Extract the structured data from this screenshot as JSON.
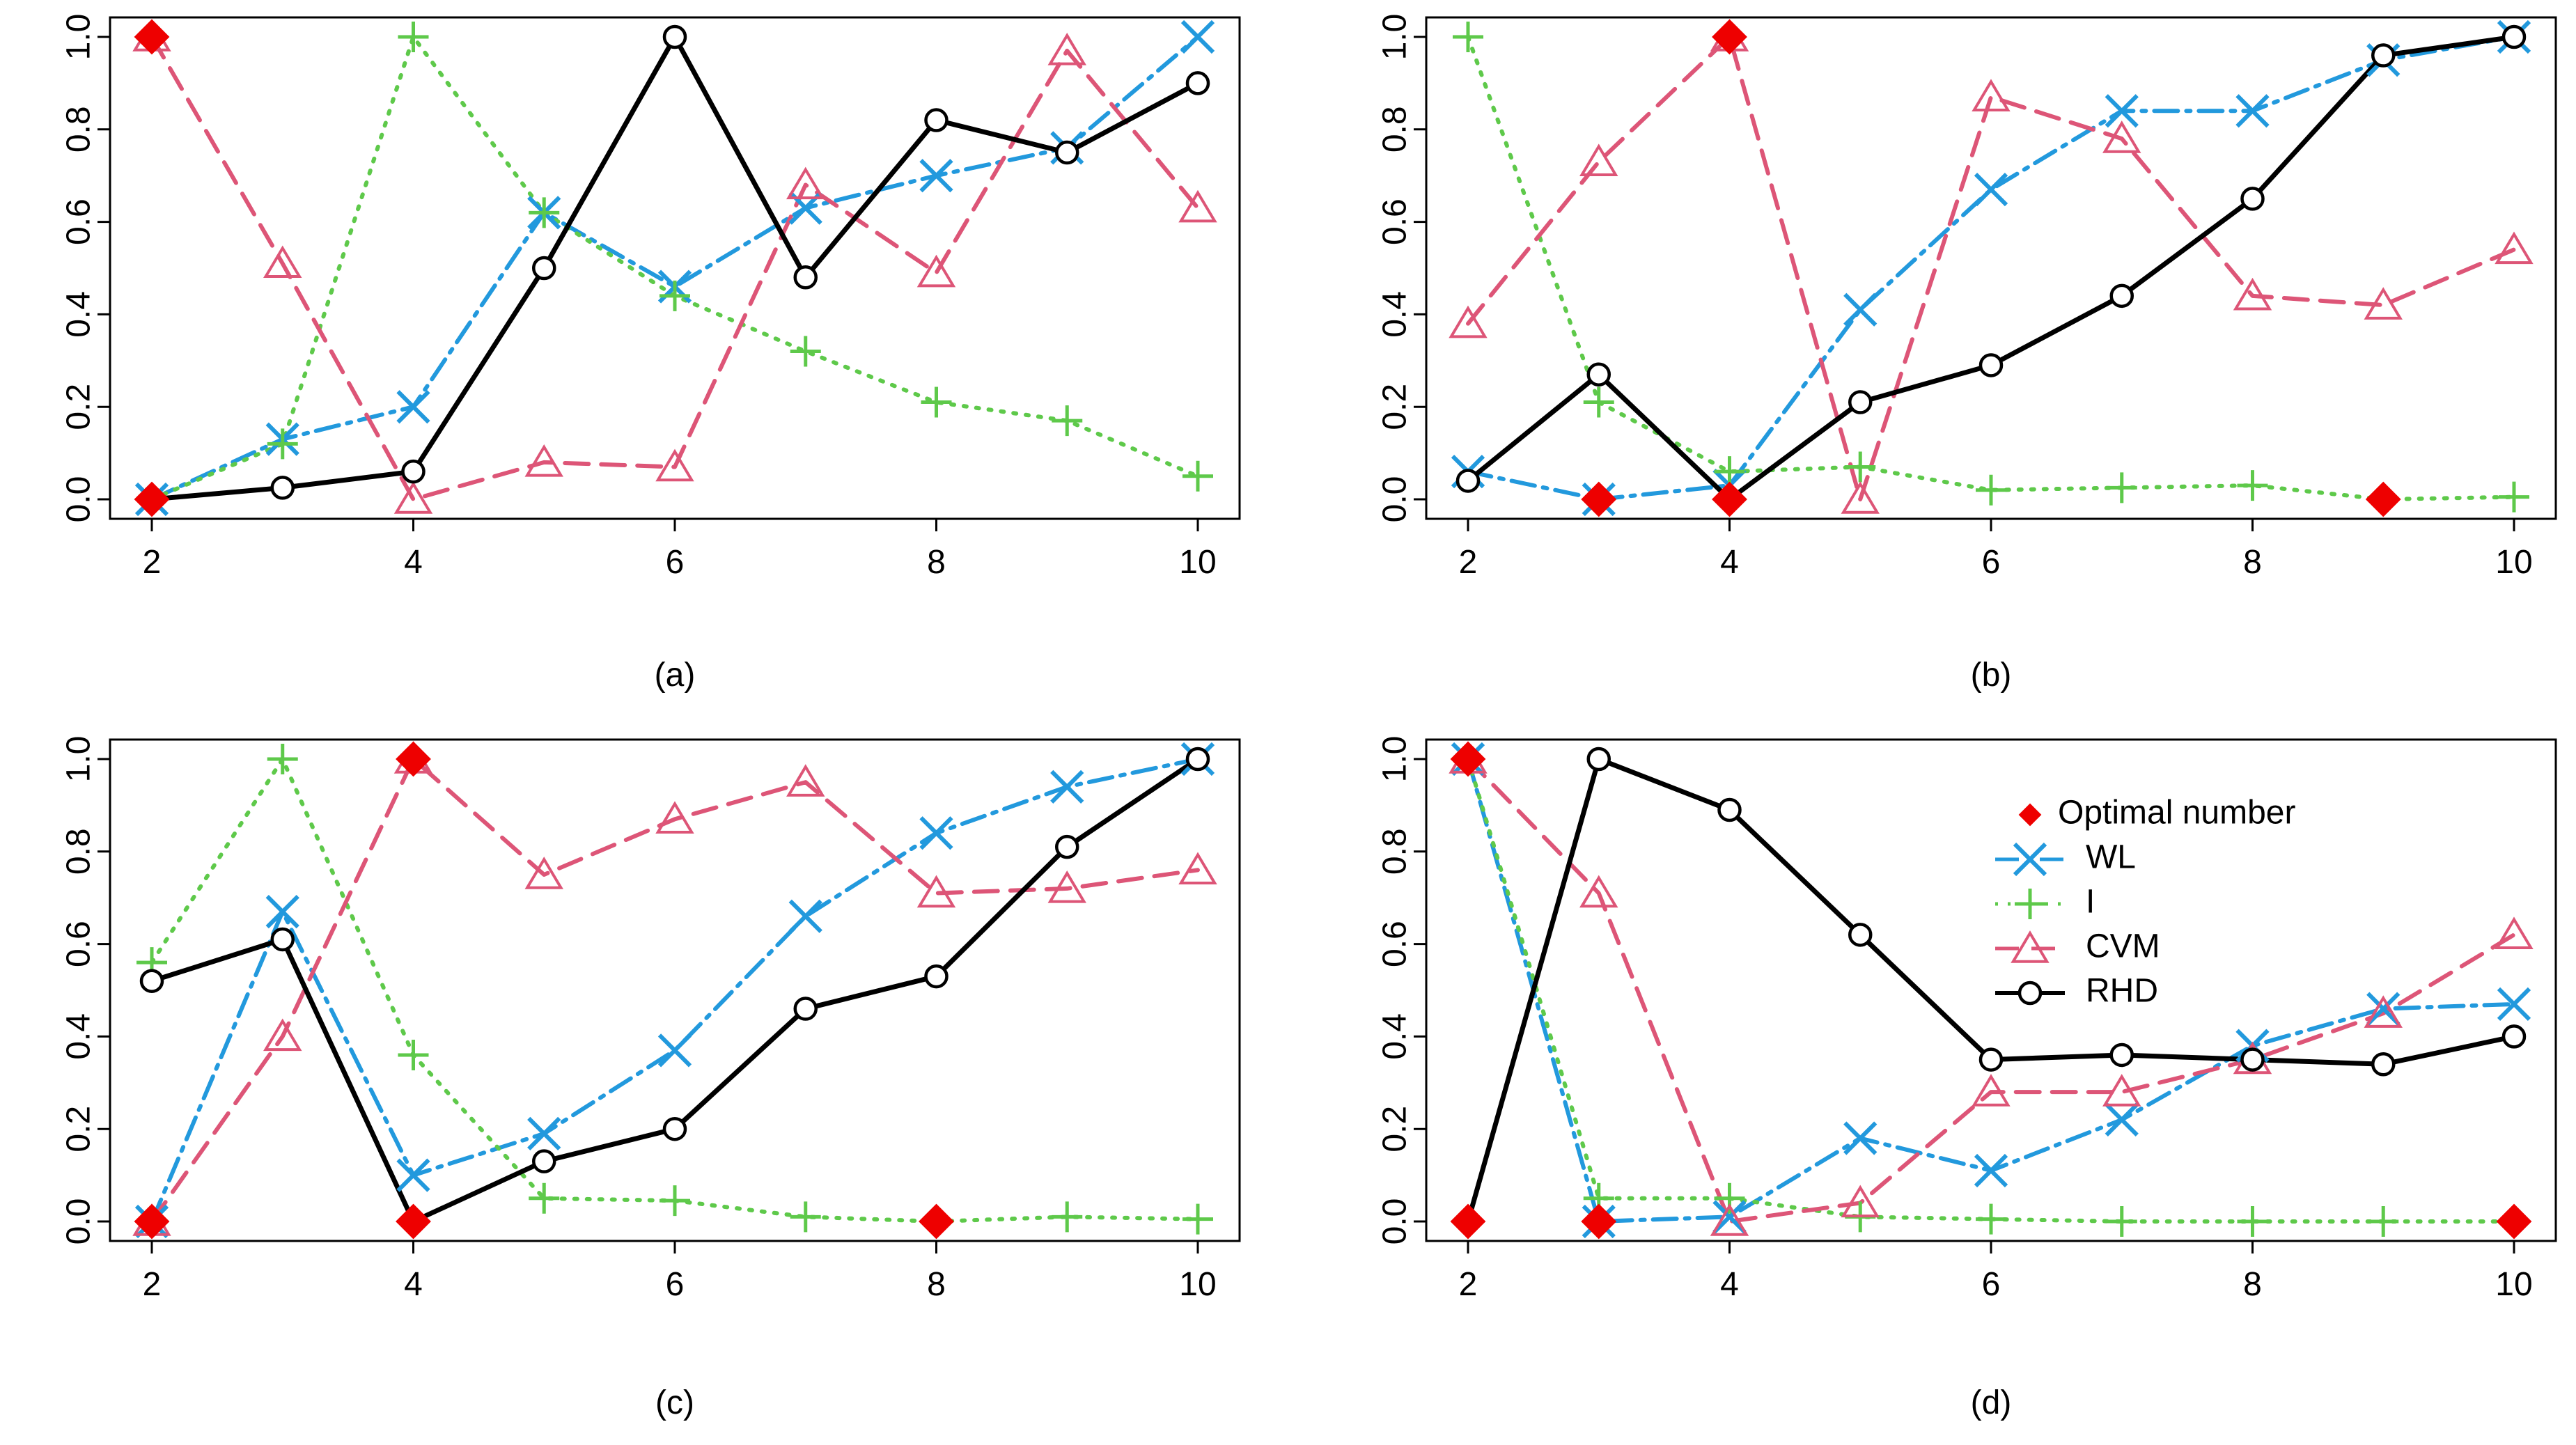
{
  "figure_title": "",
  "colors": {
    "WL": "#2299dd",
    "I": "#5ec94a",
    "CVM": "#dd5577",
    "RHD": "#000000",
    "Optimal": "#ee0000"
  },
  "legend": {
    "entries": [
      {
        "key": "Optimal",
        "label": "Optimal number",
        "marker": "diamond-icon"
      },
      {
        "key": "WL",
        "label": "WL",
        "marker": "cross-x-icon"
      },
      {
        "key": "I",
        "label": "I",
        "marker": "plus-icon"
      },
      {
        "key": "CVM",
        "label": "CVM",
        "marker": "triangle-icon"
      },
      {
        "key": "RHD",
        "label": "RHD",
        "marker": "circle-icon"
      }
    ]
  },
  "chart_data": [
    {
      "type": "line",
      "caption": "(a)",
      "x": [
        2,
        3,
        4,
        5,
        6,
        7,
        8,
        9,
        10
      ],
      "xticks": [
        2,
        4,
        6,
        8,
        10
      ],
      "yticks": [
        0.0,
        0.2,
        0.4,
        0.6,
        0.8,
        1.0
      ],
      "ytick_labels": [
        "0.0",
        "0.2",
        "0.4",
        "0.6",
        "0.8",
        "1.0"
      ],
      "xlim": [
        2,
        10
      ],
      "ylim": [
        0,
        1
      ],
      "series": [
        {
          "name": "WL",
          "values": [
            0.0,
            0.13,
            0.2,
            0.62,
            0.46,
            0.63,
            0.7,
            0.76,
            1.0
          ]
        },
        {
          "name": "I",
          "values": [
            0.0,
            0.12,
            1.0,
            0.62,
            0.44,
            0.32,
            0.21,
            0.17,
            0.05
          ]
        },
        {
          "name": "CVM",
          "values": [
            1.0,
            0.51,
            0.0,
            0.08,
            0.07,
            0.68,
            0.49,
            0.97,
            0.63
          ]
        },
        {
          "name": "RHD",
          "values": [
            0.0,
            0.025,
            0.06,
            0.5,
            1.0,
            0.48,
            0.82,
            0.75,
            0.9
          ]
        }
      ],
      "optimal_points": [
        {
          "x": 2,
          "y": 1.0
        },
        {
          "x": 2,
          "y": 0.0
        }
      ]
    },
    {
      "type": "line",
      "caption": "(b)",
      "x": [
        2,
        3,
        4,
        5,
        6,
        7,
        8,
        9,
        10
      ],
      "xticks": [
        2,
        4,
        6,
        8,
        10
      ],
      "yticks": [
        0.0,
        0.2,
        0.4,
        0.6,
        0.8,
        1.0
      ],
      "ytick_labels": [
        "0.0",
        "0.2",
        "0.4",
        "0.6",
        "0.8",
        "1.0"
      ],
      "xlim": [
        2,
        10
      ],
      "ylim": [
        0,
        1
      ],
      "series": [
        {
          "name": "WL",
          "values": [
            0.06,
            0.0,
            0.03,
            0.41,
            0.67,
            0.84,
            0.84,
            0.95,
            1.0
          ]
        },
        {
          "name": "I",
          "values": [
            1.0,
            0.21,
            0.06,
            0.07,
            0.02,
            0.025,
            0.03,
            0.0,
            0.005
          ]
        },
        {
          "name": "CVM",
          "values": [
            0.38,
            0.73,
            1.0,
            0.0,
            0.87,
            0.78,
            0.44,
            0.42,
            0.54
          ]
        },
        {
          "name": "RHD",
          "values": [
            0.04,
            0.27,
            0.0,
            0.21,
            0.29,
            0.44,
            0.65,
            0.96,
            1.0
          ]
        }
      ],
      "optimal_points": [
        {
          "x": 3,
          "y": 0.0
        },
        {
          "x": 4,
          "y": 1.0
        },
        {
          "x": 4,
          "y": 0.0
        },
        {
          "x": 9,
          "y": 0.0
        }
      ]
    },
    {
      "type": "line",
      "caption": "(c)",
      "x": [
        2,
        3,
        4,
        5,
        6,
        7,
        8,
        9,
        10
      ],
      "xticks": [
        2,
        4,
        6,
        8,
        10
      ],
      "yticks": [
        0.0,
        0.2,
        0.4,
        0.6,
        0.8,
        1.0
      ],
      "ytick_labels": [
        "0.0",
        "0.2",
        "0.4",
        "0.6",
        "0.8",
        "1.0"
      ],
      "xlim": [
        2,
        10
      ],
      "ylim": [
        0,
        1
      ],
      "series": [
        {
          "name": "WL",
          "values": [
            0.0,
            0.67,
            0.1,
            0.19,
            0.37,
            0.66,
            0.84,
            0.94,
            1.0
          ]
        },
        {
          "name": "I",
          "values": [
            0.56,
            1.0,
            0.36,
            0.05,
            0.045,
            0.01,
            0.0,
            0.01,
            0.005
          ]
        },
        {
          "name": "CVM",
          "values": [
            0.0,
            0.4,
            1.0,
            0.75,
            0.87,
            0.95,
            0.71,
            0.72,
            0.76
          ]
        },
        {
          "name": "RHD",
          "values": [
            0.52,
            0.61,
            0.0,
            0.13,
            0.2,
            0.46,
            0.53,
            0.81,
            1.0
          ]
        }
      ],
      "optimal_points": [
        {
          "x": 2,
          "y": 0.0
        },
        {
          "x": 4,
          "y": 1.0
        },
        {
          "x": 4,
          "y": 0.0
        },
        {
          "x": 8,
          "y": 0.0
        }
      ]
    },
    {
      "type": "line",
      "caption": "(d)",
      "x": [
        2,
        3,
        4,
        5,
        6,
        7,
        8,
        9,
        10
      ],
      "xticks": [
        2,
        4,
        6,
        8,
        10
      ],
      "yticks": [
        0.0,
        0.2,
        0.4,
        0.6,
        0.8,
        1.0
      ],
      "ytick_labels": [
        "0.0",
        "0.2",
        "0.4",
        "0.6",
        "0.8",
        "1.0"
      ],
      "xlim": [
        2,
        10
      ],
      "ylim": [
        0,
        1
      ],
      "series": [
        {
          "name": "WL",
          "values": [
            1.0,
            0.0,
            0.01,
            0.18,
            0.11,
            0.22,
            0.38,
            0.46,
            0.47
          ]
        },
        {
          "name": "I",
          "values": [
            1.0,
            0.05,
            0.05,
            0.01,
            0.005,
            0.0,
            0.0,
            0.0,
            0.0
          ]
        },
        {
          "name": "CVM",
          "values": [
            1.0,
            0.71,
            0.0,
            0.04,
            0.28,
            0.28,
            0.35,
            0.45,
            0.62
          ]
        },
        {
          "name": "RHD",
          "values": [
            0.0,
            1.0,
            0.89,
            0.62,
            0.35,
            0.36,
            0.35,
            0.34,
            0.4
          ]
        }
      ],
      "optimal_points": [
        {
          "x": 2,
          "y": 1.0
        },
        {
          "x": 2,
          "y": 0.0
        },
        {
          "x": 3,
          "y": 0.0
        },
        {
          "x": 10,
          "y": 0.0
        }
      ]
    }
  ]
}
